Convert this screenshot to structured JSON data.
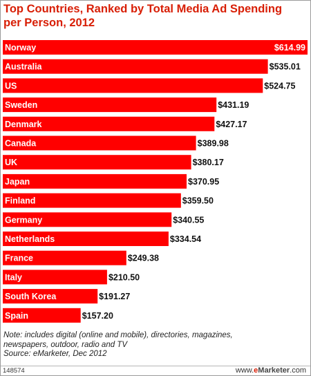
{
  "header": {
    "title_line1": "Top Countries, Ranked by Total Media Ad Spending",
    "title_line2": "per Person, 2012"
  },
  "chart_data": {
    "type": "bar",
    "orientation": "horizontal",
    "title": "Top Countries, Ranked by Total Media Ad Spending per Person, 2012",
    "categories": [
      "Norway",
      "Australia",
      "US",
      "Sweden",
      "Denmark",
      "Canada",
      "UK",
      "Japan",
      "Finland",
      "Germany",
      "Netherlands",
      "France",
      "Italy",
      "South Korea",
      "Spain"
    ],
    "values": [
      614.99,
      535.01,
      524.75,
      431.19,
      427.17,
      389.98,
      380.17,
      370.95,
      359.5,
      340.55,
      334.54,
      249.38,
      210.5,
      191.27,
      157.2
    ],
    "value_labels": [
      "$614.99",
      "$535.01",
      "$524.75",
      "$431.19",
      "$427.17",
      "$389.98",
      "$380.17",
      "$370.95",
      "$359.50",
      "$340.55",
      "$334.54",
      "$249.38",
      "$210.50",
      "$191.27",
      "$157.20"
    ],
    "bar_color": "#ff0000",
    "title_color": "#d81e05",
    "xlim": [
      0,
      614.99
    ],
    "grid": false,
    "legend": "none"
  },
  "notes": {
    "line1": "Note: includes digital (online and mobile), directories, magazines,",
    "line2": "newspapers, outdoor, radio and TV",
    "line3": "Source: eMarketer, Dec 2012"
  },
  "footer": {
    "chart_id": "148574",
    "brand_prefix": "www.",
    "brand_e": "e",
    "brand_name": "Marketer",
    "brand_suffix": ".com"
  }
}
